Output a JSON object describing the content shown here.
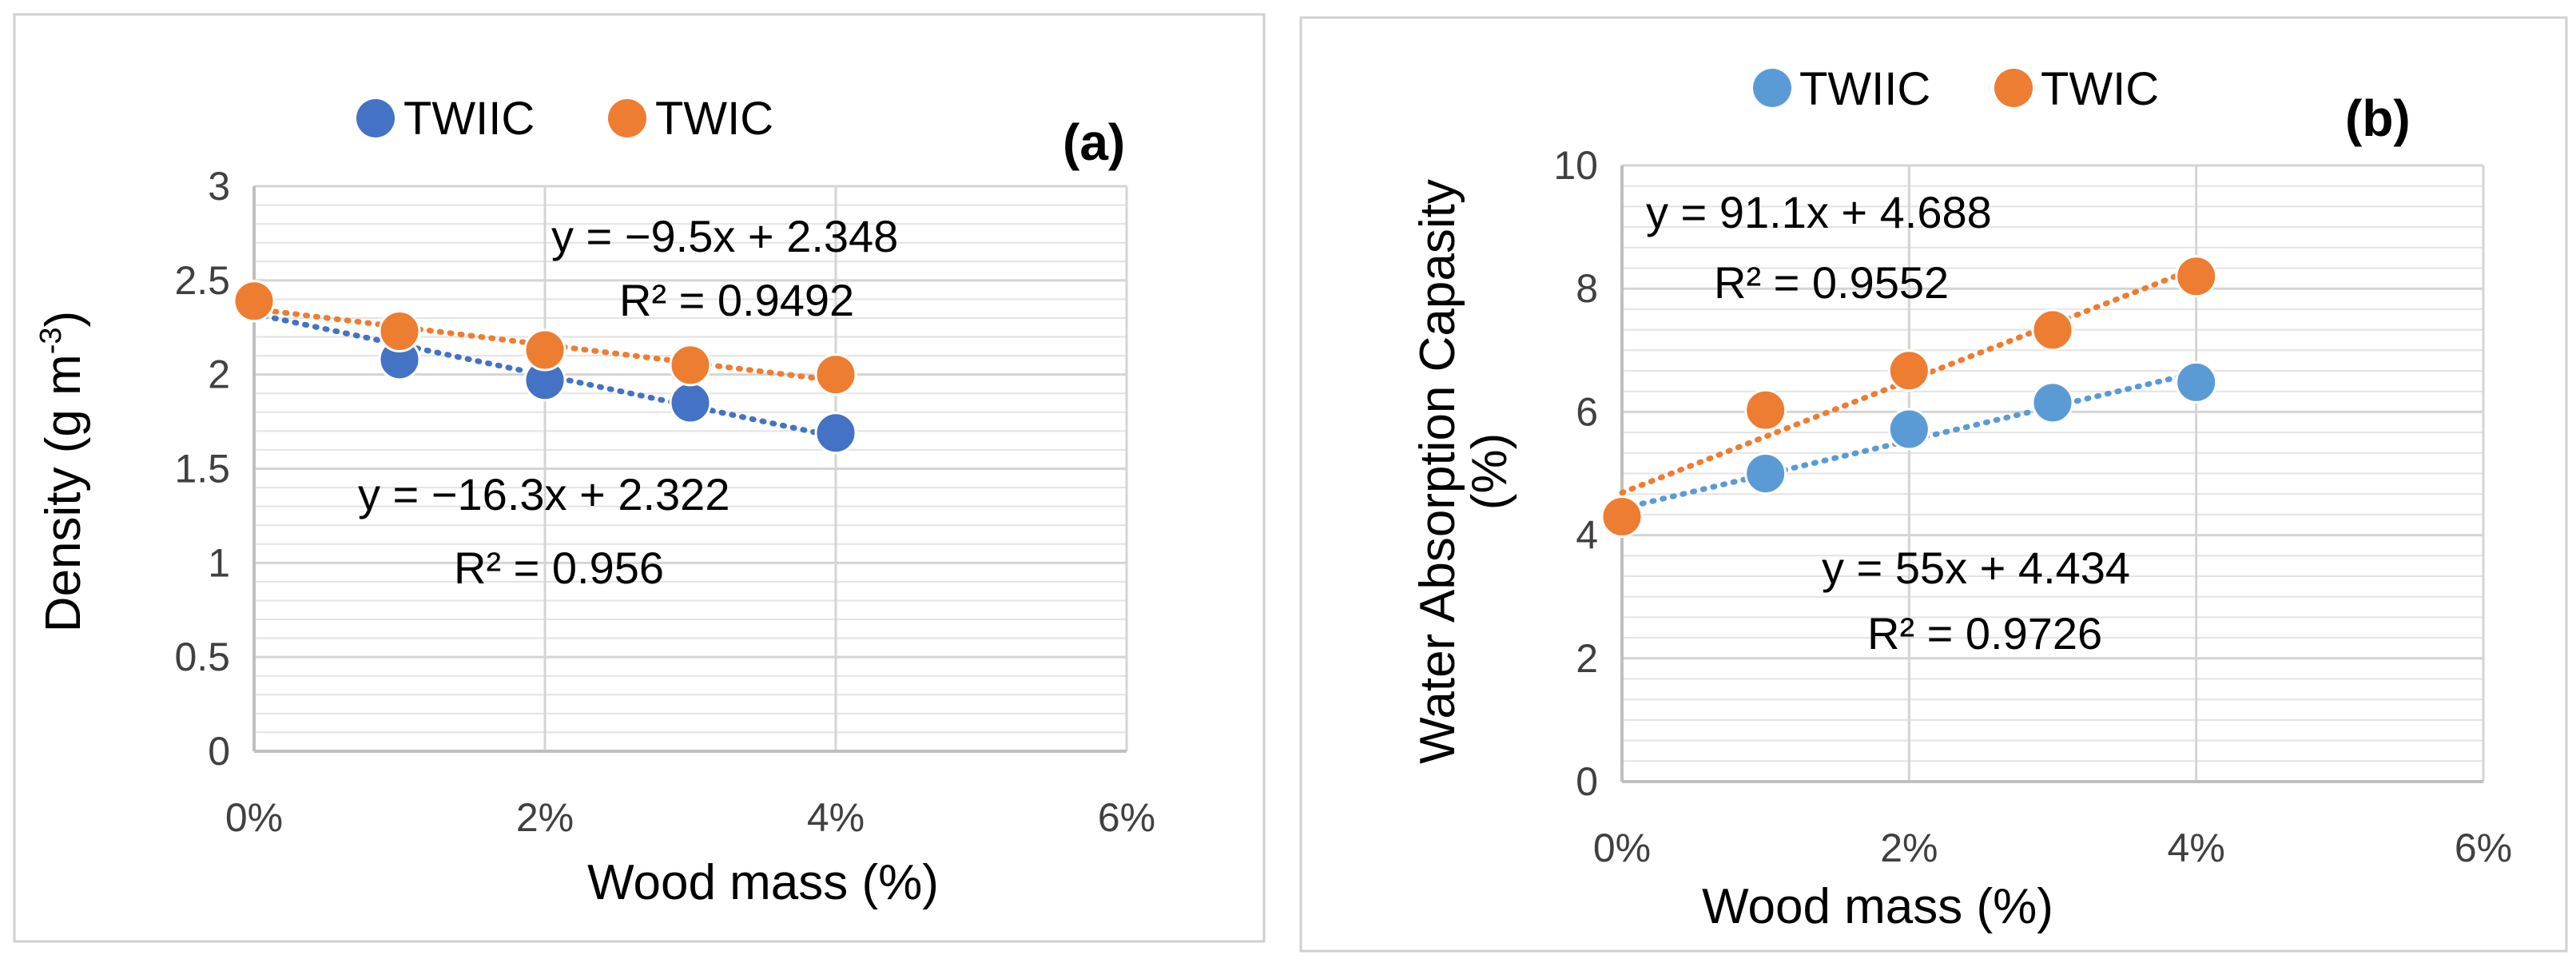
{
  "chart_data": [
    {
      "type": "scatter",
      "panel_label": "(a)",
      "xlabel": "Wood mass (%)",
      "ylabel_main": "Density (g m",
      "ylabel_sup": "-3",
      "ylabel_end": ")",
      "xlim": [
        0,
        0.06
      ],
      "ylim": [
        0,
        3
      ],
      "xticks": [
        0,
        0.02,
        0.04,
        0.06
      ],
      "xtick_labels": [
        "0%",
        "2%",
        "4%",
        "6%"
      ],
      "yticks": [
        0,
        0.5,
        1,
        1.5,
        2,
        2.5,
        3
      ],
      "ytick_labels": [
        "0",
        "0.5",
        "1",
        "1.5",
        "2",
        "2.5",
        "3"
      ],
      "legend": "top",
      "series": [
        {
          "name": "TWIIC",
          "color": "#4472C4",
          "x": [
            0,
            0.01,
            0.02,
            0.03,
            0.04
          ],
          "y": [
            2.39,
            2.08,
            1.97,
            1.85,
            1.69
          ],
          "trendline": {
            "slope": -16.3,
            "intercept": 2.322
          },
          "equation": "y = −16.3x + 2.322",
          "r2": "R² = 0.956"
        },
        {
          "name": "TWIC",
          "color": "#ED7D31",
          "x": [
            0,
            0.01,
            0.02,
            0.03,
            0.04
          ],
          "y": [
            2.39,
            2.23,
            2.13,
            2.05,
            2.0
          ],
          "trendline": {
            "slope": -9.5,
            "intercept": 2.348
          },
          "equation": "y = −9.5x + 2.348",
          "r2": "R² = 0.9492"
        }
      ]
    },
    {
      "type": "scatter",
      "panel_label": "(b)",
      "xlabel": "Wood mass (%)",
      "ylabel_line1": "Water Absorption Capasity",
      "ylabel_line2": "(%)",
      "xlim": [
        0,
        0.06
      ],
      "ylim": [
        0,
        10
      ],
      "xticks": [
        0,
        0.02,
        0.04,
        0.06
      ],
      "xtick_labels": [
        "0%",
        "2%",
        "4%",
        "6%"
      ],
      "yticks": [
        0,
        2,
        4,
        6,
        8,
        10
      ],
      "ytick_labels": [
        "0",
        "2",
        "4",
        "6",
        "8",
        "10"
      ],
      "legend": "top",
      "series": [
        {
          "name": "TWIIC",
          "color": "#5B9BD5",
          "x": [
            0,
            0.01,
            0.02,
            0.03,
            0.04
          ],
          "y": [
            4.3,
            5.0,
            5.72,
            6.15,
            6.48
          ],
          "trendline": {
            "slope": 55,
            "intercept": 4.434
          },
          "equation": "y = 55x + 4.434",
          "r2": "R² = 0.9726"
        },
        {
          "name": "TWIC",
          "color": "#ED7D31",
          "x": [
            0,
            0.01,
            0.02,
            0.03,
            0.04
          ],
          "y": [
            4.3,
            6.03,
            6.67,
            7.33,
            8.2
          ],
          "trendline": {
            "slope": 91.1,
            "intercept": 4.688
          },
          "equation": "y = 91.1x + 4.688",
          "r2": "R² = 0.9552"
        }
      ]
    }
  ]
}
